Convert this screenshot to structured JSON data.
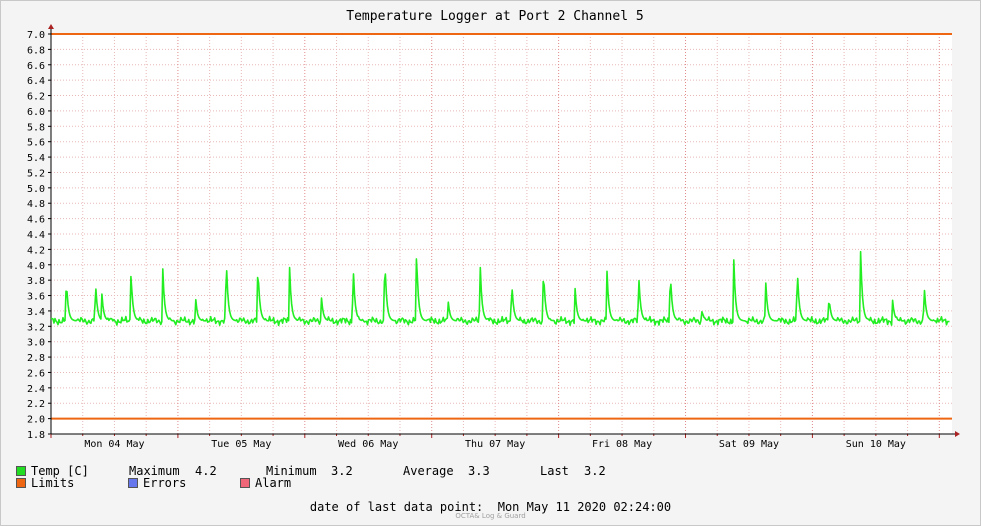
{
  "chart_data": {
    "type": "line",
    "title": "Temperature Logger at Port 2 Channel 5",
    "ylim": [
      1.8,
      7.0
    ],
    "y_ticks": [
      "7.0",
      "6.8",
      "6.6",
      "6.4",
      "6.2",
      "6.0",
      "5.8",
      "5.6",
      "5.4",
      "5.2",
      "5.0",
      "4.8",
      "4.6",
      "4.4",
      "4.2",
      "4.0",
      "3.8",
      "3.6",
      "3.4",
      "3.2",
      "3.0",
      "2.8",
      "2.6",
      "2.4",
      "2.2",
      "2.0",
      "1.8"
    ],
    "x_labels": [
      "Mon 04 May",
      "Tue 05 May",
      "Wed 06 May",
      "Thu 07 May",
      "Fri 08 May",
      "Sat 09 May",
      "Sun 10 May"
    ],
    "x_range_days": [
      0,
      7.1
    ],
    "grid": true,
    "limits": {
      "upper": 7.0,
      "lower": 2.0
    },
    "series": [
      {
        "name": "Temp [C]",
        "baseline": 3.27,
        "spikes": [
          {
            "day": 0.12,
            "peak": 3.85
          },
          {
            "day": 0.35,
            "peak": 3.82
          },
          {
            "day": 0.4,
            "peak": 3.65
          },
          {
            "day": 0.63,
            "peak": 3.92
          },
          {
            "day": 0.88,
            "peak": 4.0
          },
          {
            "day": 1.14,
            "peak": 3.56
          },
          {
            "day": 1.38,
            "peak": 4.17
          },
          {
            "day": 1.63,
            "peak": 4.04
          },
          {
            "day": 1.88,
            "peak": 3.97
          },
          {
            "day": 2.13,
            "peak": 3.61
          },
          {
            "day": 2.38,
            "peak": 4.06
          },
          {
            "day": 2.63,
            "peak": 4.16
          },
          {
            "day": 2.88,
            "peak": 4.2
          },
          {
            "day": 3.13,
            "peak": 3.53
          },
          {
            "day": 3.38,
            "peak": 4.11
          },
          {
            "day": 3.63,
            "peak": 3.82
          },
          {
            "day": 3.88,
            "peak": 3.99
          },
          {
            "day": 4.13,
            "peak": 3.69
          },
          {
            "day": 4.38,
            "peak": 4.0
          },
          {
            "day": 4.63,
            "peak": 3.94
          },
          {
            "day": 4.88,
            "peak": 3.96
          },
          {
            "day": 5.13,
            "peak": 3.41
          },
          {
            "day": 5.38,
            "peak": 4.11
          },
          {
            "day": 5.63,
            "peak": 3.86
          },
          {
            "day": 5.88,
            "peak": 4.02
          },
          {
            "day": 6.13,
            "peak": 3.6
          },
          {
            "day": 6.38,
            "peak": 4.19
          },
          {
            "day": 6.63,
            "peak": 3.57
          },
          {
            "day": 6.88,
            "peak": 3.77
          }
        ]
      }
    ]
  },
  "legend": {
    "temp": {
      "label": "Temp [C]",
      "color": "#22dd22"
    },
    "limits": {
      "label": "Limits",
      "color": "#ee6611"
    },
    "errors": {
      "label": "Errors",
      "color": "#6677ee"
    },
    "alarm": {
      "label": "Alarm",
      "color": "#ee6677"
    }
  },
  "stats": {
    "maximum_label": "Maximum",
    "maximum": "4.2",
    "minimum_label": "Minimum",
    "minimum": "3.2",
    "average_label": "Average",
    "average": "3.3",
    "last_label": "Last",
    "last": "3.2"
  },
  "footer": {
    "label": "date of last data point:",
    "value": "Mon May 11 2020 02:24:00"
  },
  "credit": "OCTA& Log & Guard",
  "colors": {
    "plot_bg": "#ffffff",
    "frame_bg": "#f4f4f4",
    "grid": "#e8b8b8",
    "axis": "#000000",
    "axis_arrow": "#aa2222",
    "line": "#22ee22",
    "limit_line": "#ee6611"
  }
}
